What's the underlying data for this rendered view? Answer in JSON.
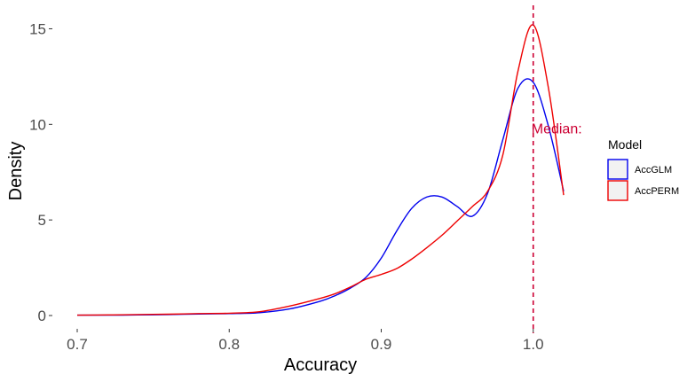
{
  "chart_data": {
    "type": "line",
    "title": "",
    "xlabel": "Accuracy",
    "ylabel": "Density",
    "xlim": [
      0.7,
      1.02
    ],
    "ylim": [
      0,
      15.3
    ],
    "grid": false,
    "x_ticks": [
      {
        "value": 0.7,
        "label": "0.7"
      },
      {
        "value": 0.8,
        "label": "0.8"
      },
      {
        "value": 0.9,
        "label": "0.9"
      },
      {
        "value": 1.0,
        "label": "1.0"
      }
    ],
    "y_ticks": [
      {
        "value": 0,
        "label": "0"
      },
      {
        "value": 5,
        "label": "5"
      },
      {
        "value": 10,
        "label": "10"
      },
      {
        "value": 15,
        "label": "15"
      }
    ],
    "legend": {
      "title": "Model",
      "placement": "right",
      "entries": [
        "AccGLM",
        "AccPERM"
      ]
    },
    "series": [
      {
        "name": "AccGLM",
        "color": "#0000ee",
        "x": [
          0.7,
          0.72,
          0.74,
          0.76,
          0.78,
          0.8,
          0.82,
          0.84,
          0.86,
          0.87,
          0.88,
          0.89,
          0.9,
          0.91,
          0.92,
          0.93,
          0.94,
          0.95,
          0.96,
          0.97,
          0.98,
          0.99,
          1.0,
          1.01,
          1.02
        ],
        "y": [
          0.02,
          0.02,
          0.03,
          0.05,
          0.08,
          0.1,
          0.15,
          0.35,
          0.75,
          1.05,
          1.45,
          2.0,
          3.0,
          4.4,
          5.6,
          6.2,
          6.2,
          5.7,
          5.2,
          6.4,
          9.2,
          11.9,
          12.2,
          9.9,
          6.5
        ]
      },
      {
        "name": "AccPERM",
        "color": "#ee0000",
        "x": [
          0.7,
          0.72,
          0.74,
          0.76,
          0.78,
          0.8,
          0.82,
          0.84,
          0.86,
          0.87,
          0.88,
          0.89,
          0.9,
          0.91,
          0.92,
          0.93,
          0.94,
          0.95,
          0.96,
          0.97,
          0.98,
          0.99,
          1.0,
          1.01,
          1.02
        ],
        "y": [
          0.02,
          0.03,
          0.05,
          0.07,
          0.1,
          0.12,
          0.2,
          0.5,
          0.9,
          1.15,
          1.5,
          1.9,
          2.15,
          2.45,
          2.95,
          3.55,
          4.2,
          4.95,
          5.7,
          6.5,
          8.4,
          12.8,
          15.2,
          11.9,
          6.3
        ]
      }
    ],
    "annotations": [
      {
        "type": "vline",
        "x": 1.0,
        "color": "#cc0033",
        "style": "dashed"
      },
      {
        "type": "text",
        "text": "Median:",
        "x": 1.0,
        "y": 9.8,
        "color": "#cc0033"
      }
    ]
  }
}
